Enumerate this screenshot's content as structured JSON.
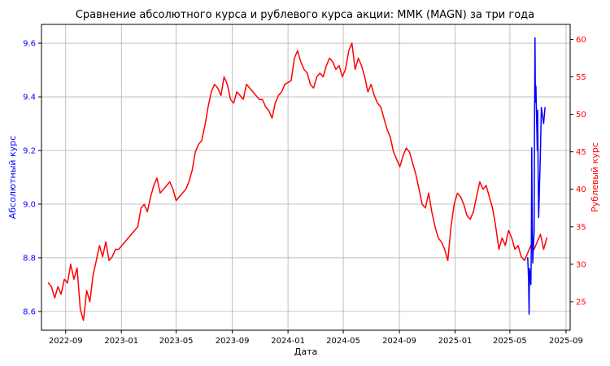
{
  "chart_data": {
    "type": "line",
    "title": "Сравнение абсолютного курса и рублевого курса акции: ММК (MAGN) за три года",
    "xlabel": "Дата",
    "ylabel_left": "Абсолютный курс",
    "ylabel_right": "Рублевый курс",
    "left_axis_color": "#0000ff",
    "right_axis_color": "#ff0000",
    "grid": true,
    "xlim": [
      "2022-07-10",
      "2025-09-10"
    ],
    "ylim_left": [
      8.53,
      9.67
    ],
    "ylim_right": [
      21.2,
      62.0
    ],
    "x_ticks": [
      "2022-09",
      "2023-01",
      "2023-05",
      "2023-09",
      "2024-01",
      "2024-05",
      "2024-09",
      "2025-01",
      "2025-05",
      "2025-09"
    ],
    "y_ticks_left": [
      "8.6",
      "8.8",
      "9.0",
      "9.2",
      "9.4",
      "9.6"
    ],
    "y_ticks_right": [
      "25",
      "30",
      "35",
      "40",
      "45",
      "50",
      "55",
      "60"
    ],
    "series": [
      {
        "axis": "right",
        "color": "#ff0000",
        "points": [
          [
            "2022-07-25",
            27.5
          ],
          [
            "2022-08-01",
            27.0
          ],
          [
            "2022-08-08",
            25.5
          ],
          [
            "2022-08-15",
            27.0
          ],
          [
            "2022-08-22",
            26.0
          ],
          [
            "2022-08-29",
            28.0
          ],
          [
            "2022-09-05",
            27.5
          ],
          [
            "2022-09-12",
            30.0
          ],
          [
            "2022-09-19",
            28.0
          ],
          [
            "2022-09-26",
            29.5
          ],
          [
            "2022-10-03",
            24.0
          ],
          [
            "2022-10-10",
            22.5
          ],
          [
            "2022-10-17",
            26.5
          ],
          [
            "2022-10-24",
            25.0
          ],
          [
            "2022-10-31",
            28.5
          ],
          [
            "2022-11-07",
            30.5
          ],
          [
            "2022-11-14",
            32.5
          ],
          [
            "2022-11-21",
            31.0
          ],
          [
            "2022-11-28",
            33.0
          ],
          [
            "2022-12-05",
            30.5
          ],
          [
            "2022-12-12",
            31.0
          ],
          [
            "2022-12-19",
            32.0
          ],
          [
            "2022-12-26",
            32.0
          ],
          [
            "2023-01-09",
            33.0
          ],
          [
            "2023-01-16",
            33.5
          ],
          [
            "2023-01-23",
            34.0
          ],
          [
            "2023-02-06",
            35.0
          ],
          [
            "2023-02-13",
            37.5
          ],
          [
            "2023-02-20",
            38.0
          ],
          [
            "2023-02-27",
            37.0
          ],
          [
            "2023-03-06",
            39.0
          ],
          [
            "2023-03-13",
            40.5
          ],
          [
            "2023-03-20",
            41.5
          ],
          [
            "2023-03-27",
            39.5
          ],
          [
            "2023-04-03",
            40.0
          ],
          [
            "2023-04-10",
            40.5
          ],
          [
            "2023-04-17",
            41.0
          ],
          [
            "2023-04-24",
            40.0
          ],
          [
            "2023-05-01",
            38.5
          ],
          [
            "2023-05-08",
            39.0
          ],
          [
            "2023-05-15",
            39.5
          ],
          [
            "2023-05-22",
            40.0
          ],
          [
            "2023-05-29",
            41.0
          ],
          [
            "2023-06-05",
            42.5
          ],
          [
            "2023-06-12",
            45.0
          ],
          [
            "2023-06-19",
            46.0
          ],
          [
            "2023-06-26",
            46.5
          ],
          [
            "2023-07-03",
            48.5
          ],
          [
            "2023-07-10",
            51.0
          ],
          [
            "2023-07-17",
            53.0
          ],
          [
            "2023-07-24",
            54.0
          ],
          [
            "2023-07-31",
            53.5
          ],
          [
            "2023-08-07",
            52.5
          ],
          [
            "2023-08-14",
            55.0
          ],
          [
            "2023-08-21",
            54.0
          ],
          [
            "2023-08-28",
            52.0
          ],
          [
            "2023-09-04",
            51.5
          ],
          [
            "2023-09-11",
            53.0
          ],
          [
            "2023-09-18",
            52.5
          ],
          [
            "2023-09-25",
            52.0
          ],
          [
            "2023-10-02",
            54.0
          ],
          [
            "2023-10-09",
            53.5
          ],
          [
            "2023-10-16",
            53.0
          ],
          [
            "2023-10-23",
            52.5
          ],
          [
            "2023-10-30",
            52.0
          ],
          [
            "2023-11-06",
            52.0
          ],
          [
            "2023-11-13",
            51.0
          ],
          [
            "2023-11-20",
            50.5
          ],
          [
            "2023-11-27",
            49.5
          ],
          [
            "2023-12-04",
            51.5
          ],
          [
            "2023-12-11",
            52.5
          ],
          [
            "2023-12-18",
            53.0
          ],
          [
            "2023-12-25",
            54.0
          ],
          [
            "2024-01-08",
            54.5
          ],
          [
            "2024-01-15",
            57.5
          ],
          [
            "2024-01-22",
            58.5
          ],
          [
            "2024-01-29",
            57.0
          ],
          [
            "2024-02-05",
            56.0
          ],
          [
            "2024-02-12",
            55.5
          ],
          [
            "2024-02-19",
            54.0
          ],
          [
            "2024-02-26",
            53.5
          ],
          [
            "2024-03-04",
            55.0
          ],
          [
            "2024-03-11",
            55.5
          ],
          [
            "2024-03-18",
            55.0
          ],
          [
            "2024-03-25",
            56.5
          ],
          [
            "2024-04-01",
            57.5
          ],
          [
            "2024-04-08",
            57.0
          ],
          [
            "2024-04-15",
            56.0
          ],
          [
            "2024-04-22",
            56.5
          ],
          [
            "2024-04-29",
            55.0
          ],
          [
            "2024-05-06",
            56.0
          ],
          [
            "2024-05-13",
            58.5
          ],
          [
            "2024-05-20",
            59.5
          ],
          [
            "2024-05-27",
            56.0
          ],
          [
            "2024-06-03",
            57.5
          ],
          [
            "2024-06-10",
            56.5
          ],
          [
            "2024-06-17",
            55.0
          ],
          [
            "2024-06-24",
            53.0
          ],
          [
            "2024-07-01",
            54.0
          ],
          [
            "2024-07-08",
            52.5
          ],
          [
            "2024-07-15",
            51.5
          ],
          [
            "2024-07-22",
            51.0
          ],
          [
            "2024-07-29",
            49.5
          ],
          [
            "2024-08-05",
            48.0
          ],
          [
            "2024-08-12",
            47.0
          ],
          [
            "2024-08-19",
            45.0
          ],
          [
            "2024-08-26",
            44.0
          ],
          [
            "2024-09-02",
            43.0
          ],
          [
            "2024-09-09",
            44.5
          ],
          [
            "2024-09-16",
            45.5
          ],
          [
            "2024-09-23",
            45.0
          ],
          [
            "2024-09-30",
            43.5
          ],
          [
            "2024-10-07",
            42.0
          ],
          [
            "2024-10-14",
            40.0
          ],
          [
            "2024-10-21",
            38.0
          ],
          [
            "2024-10-28",
            37.5
          ],
          [
            "2024-11-04",
            39.5
          ],
          [
            "2024-11-11",
            37.0
          ],
          [
            "2024-11-18",
            35.0
          ],
          [
            "2024-11-25",
            33.5
          ],
          [
            "2024-12-02",
            33.0
          ],
          [
            "2024-12-09",
            32.0
          ],
          [
            "2024-12-16",
            30.5
          ],
          [
            "2024-12-23",
            35.0
          ],
          [
            "2024-12-30",
            38.0
          ],
          [
            "2025-01-06",
            39.5
          ],
          [
            "2025-01-13",
            39.0
          ],
          [
            "2025-01-20",
            38.0
          ],
          [
            "2025-01-27",
            36.5
          ],
          [
            "2025-02-03",
            36.0
          ],
          [
            "2025-02-10",
            37.0
          ],
          [
            "2025-02-17",
            39.0
          ],
          [
            "2025-02-24",
            41.0
          ],
          [
            "2025-03-03",
            40.0
          ],
          [
            "2025-03-10",
            40.5
          ],
          [
            "2025-03-17",
            39.0
          ],
          [
            "2025-03-24",
            37.5
          ],
          [
            "2025-03-31",
            35.0
          ],
          [
            "2025-04-07",
            32.0
          ],
          [
            "2025-04-14",
            33.5
          ],
          [
            "2025-04-21",
            32.5
          ],
          [
            "2025-04-28",
            34.5
          ],
          [
            "2025-05-05",
            33.5
          ],
          [
            "2025-05-12",
            32.0
          ],
          [
            "2025-05-19",
            32.5
          ],
          [
            "2025-05-26",
            31.0
          ],
          [
            "2025-06-02",
            30.5
          ],
          [
            "2025-06-09",
            31.5
          ],
          [
            "2025-06-16",
            32.5
          ],
          [
            "2025-06-23",
            32.0
          ],
          [
            "2025-06-30",
            33.0
          ],
          [
            "2025-07-07",
            34.0
          ],
          [
            "2025-07-14",
            32.0
          ],
          [
            "2025-07-21",
            33.5
          ]
        ]
      },
      {
        "axis": "left",
        "color": "#0000ff",
        "points": [
          [
            "2025-06-09",
            8.8
          ],
          [
            "2025-06-11",
            8.72
          ],
          [
            "2025-06-12",
            8.59
          ],
          [
            "2025-06-13",
            8.76
          ],
          [
            "2025-06-16",
            8.7
          ],
          [
            "2025-06-17",
            8.85
          ],
          [
            "2025-06-18",
            9.21
          ],
          [
            "2025-06-19",
            8.95
          ],
          [
            "2025-06-20",
            8.78
          ],
          [
            "2025-06-23",
            8.9
          ],
          [
            "2025-06-24",
            9.3
          ],
          [
            "2025-06-25",
            9.62
          ],
          [
            "2025-06-26",
            9.38
          ],
          [
            "2025-06-27",
            9.44
          ],
          [
            "2025-06-30",
            9.2
          ],
          [
            "2025-07-01",
            9.35
          ],
          [
            "2025-07-02",
            9.1
          ],
          [
            "2025-07-03",
            8.95
          ],
          [
            "2025-07-07",
            9.2
          ],
          [
            "2025-07-09",
            9.36
          ],
          [
            "2025-07-14",
            9.3
          ],
          [
            "2025-07-17",
            9.36
          ]
        ]
      }
    ]
  }
}
